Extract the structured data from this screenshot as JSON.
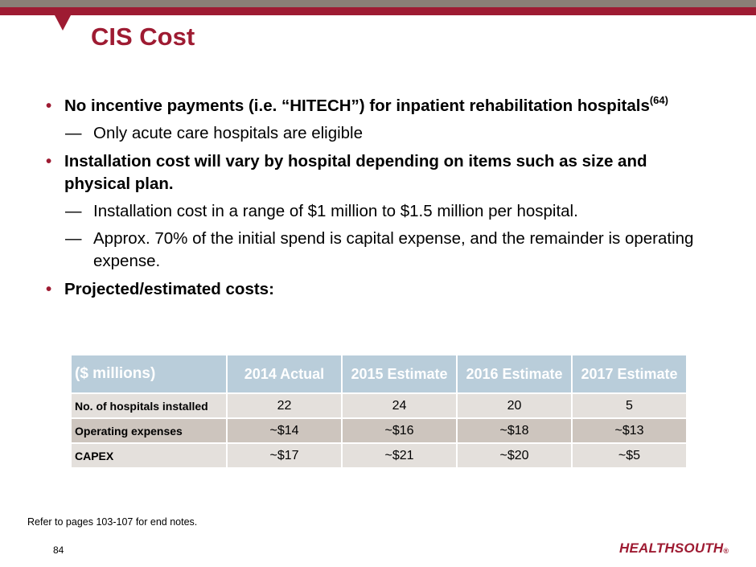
{
  "slide": {
    "title": "CIS Cost",
    "page_number": "84",
    "footnote": "Refer to pages 103-107 for end notes.",
    "logo_text": "HEALTHSOUTH",
    "logo_mark": "®"
  },
  "bullets": [
    {
      "text": "No incentive payments (i.e. “HITECH”) for inpatient rehabilitation hospitals",
      "sup": "(64)",
      "subs": [
        "Only acute care hospitals are eligible"
      ]
    },
    {
      "text": "Installation cost will vary by hospital depending on items such as size and physical plan.",
      "subs": [
        "Installation cost in a range of $1 million to $1.5 million per hospital.",
        "Approx. 70% of the initial spend is capital expense, and the remainder is operating expense."
      ]
    },
    {
      "text": "Projected/estimated costs:"
    }
  ],
  "bullet_glyph": "•",
  "dash_glyph": "—",
  "table": {
    "headers": [
      "($ millions)",
      "2014 Actual",
      "2015 Estimate",
      "2016 Estimate",
      "2017 Estimate"
    ],
    "rows": [
      [
        "No. of hospitals installed",
        "22",
        "24",
        "20",
        "5"
      ],
      [
        "Operating expenses",
        "~$14",
        "~$16",
        "~$18",
        "~$13"
      ],
      [
        "CAPEX",
        "~$17",
        "~$21",
        "~$20",
        "~$5"
      ]
    ]
  },
  "colors": {
    "brand_red": "#9e1b32",
    "top_band_gray": "#8a7f76",
    "table_header_blue": "#b9cdda",
    "row_light": "#e4e0dc",
    "row_dark": "#cdc5be"
  }
}
